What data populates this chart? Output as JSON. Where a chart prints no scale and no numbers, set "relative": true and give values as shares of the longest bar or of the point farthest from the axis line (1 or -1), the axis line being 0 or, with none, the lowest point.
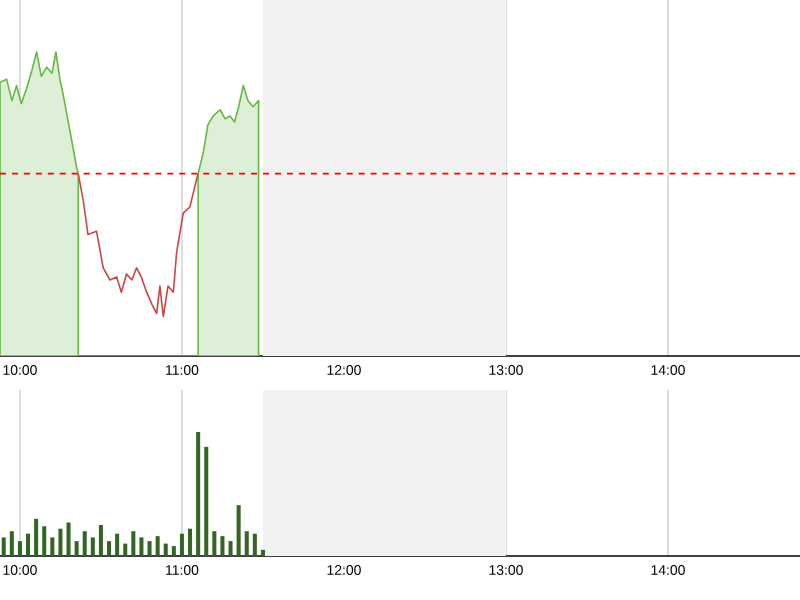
{
  "chart_data": [
    {
      "type": "line",
      "relative": true,
      "grid": true,
      "x": [
        9.877,
        9.918,
        9.951,
        9.979,
        10.008,
        10.041,
        10.074,
        10.103,
        10.132,
        10.165,
        10.198,
        10.222,
        10.247,
        10.267,
        10.309,
        10.35,
        10.36,
        10.391,
        10.42,
        10.473,
        10.514,
        10.556,
        10.597,
        10.626,
        10.658,
        10.691,
        10.72,
        10.749,
        10.782,
        10.815,
        10.844,
        10.864,
        10.885,
        10.914,
        10.947,
        10.967,
        11.008,
        11.049,
        11.09,
        11.1,
        11.132,
        11.16,
        11.193,
        11.235,
        11.267,
        11.296,
        11.325,
        11.35,
        11.379,
        11.407,
        11.44,
        11.473
      ],
      "series": [
        {
          "type": "area",
          "color": "#66b844",
          "values": [
            0.9,
            0.91,
            0.84,
            0.89,
            0.83,
            0.88,
            0.94,
            1,
            0.92,
            0.95,
            0.93,
            1,
            0.91,
            0.86,
            0.74,
            0.62,
            0.6,
            null,
            null,
            null,
            null,
            null,
            null,
            null,
            null,
            null,
            null,
            null,
            null,
            null,
            null,
            null,
            null,
            null,
            null,
            null,
            null,
            null,
            null,
            0.6,
            0.67,
            0.76,
            0.79,
            0.81,
            0.78,
            0.79,
            0.77,
            0.82,
            0.89,
            0.84,
            0.82,
            0.84
          ]
        },
        {
          "type": "line",
          "color": "#cc4444",
          "values": [
            null,
            null,
            null,
            null,
            null,
            null,
            null,
            null,
            null,
            null,
            null,
            null,
            null,
            null,
            null,
            null,
            0.6,
            0.51,
            0.4,
            0.41,
            0.29,
            0.25,
            0.26,
            0.21,
            0.27,
            0.25,
            0.29,
            0.26,
            0.21,
            0.17,
            0.14,
            0.23,
            0.13,
            0.23,
            0.21,
            0.34,
            0.47,
            0.49,
            0.58,
            0.6,
            null,
            null,
            null,
            null,
            null,
            null,
            null,
            null,
            null,
            null,
            null,
            null
          ]
        }
      ],
      "xlim": [
        9.877,
        14.815
      ],
      "xticks": [
        {
          "value": 10,
          "label": "10:00"
        },
        {
          "value": 11,
          "label": "11:00"
        },
        {
          "value": 12,
          "label": "12:00"
        },
        {
          "value": 13,
          "label": "13:00"
        },
        {
          "value": 14,
          "label": "14:00"
        }
      ],
      "ref_lines": [
        {
          "axis": "y",
          "value": 0.6,
          "color": "#ff0000",
          "line_style": "dashed"
        }
      ],
      "bands": [
        {
          "axis": "x",
          "from": 11.5,
          "to": 13,
          "color": "#f2f2f2"
        }
      ]
    },
    {
      "type": "bar",
      "relative": true,
      "grid": true,
      "color": "#336622",
      "x": [
        9.9,
        9.95,
        10.0,
        10.05,
        10.1,
        10.15,
        10.2,
        10.25,
        10.3,
        10.35,
        10.4,
        10.45,
        10.5,
        10.55,
        10.6,
        10.65,
        10.7,
        10.75,
        10.8,
        10.85,
        10.9,
        10.95,
        11.0,
        11.05,
        11.1,
        11.15,
        11.2,
        11.25,
        11.3,
        11.35,
        11.4,
        11.45,
        11.5
      ],
      "values": [
        0.15,
        0.2,
        0.12,
        0.18,
        0.3,
        0.24,
        0.15,
        0.22,
        0.27,
        0.12,
        0.2,
        0.15,
        0.25,
        0.12,
        0.18,
        0.1,
        0.2,
        0.15,
        0.12,
        0.16,
        0.1,
        0.08,
        0.18,
        0.22,
        1,
        0.88,
        0.2,
        0.16,
        0.12,
        0.41,
        0.2,
        0.18,
        0.05
      ],
      "xlim": [
        9.877,
        14.815
      ],
      "xticks": [
        {
          "value": 10,
          "label": "10:00"
        },
        {
          "value": 11,
          "label": "11:00"
        },
        {
          "value": 12,
          "label": "12:00"
        },
        {
          "value": 13,
          "label": "13:00"
        },
        {
          "value": 14,
          "label": "14:00"
        }
      ],
      "bands": [
        {
          "axis": "x",
          "from": 11.5,
          "to": 13,
          "color": "#f2f2f2"
        }
      ]
    }
  ]
}
